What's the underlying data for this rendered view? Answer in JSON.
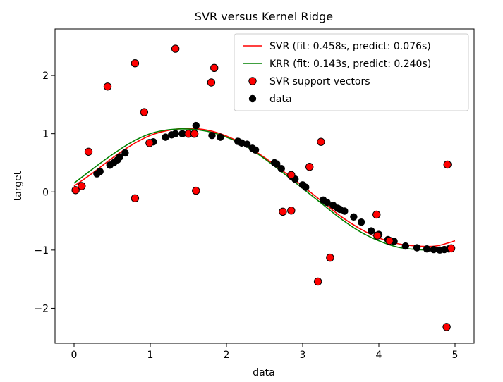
{
  "chart_data": {
    "type": "scatter",
    "title": "SVR versus Kernel Ridge",
    "xlabel": "data",
    "ylabel": "target",
    "xlim": [
      -0.25,
      5.25
    ],
    "ylim": [
      -2.6,
      2.8
    ],
    "x_ticks": [
      0,
      1,
      2,
      3,
      4,
      5
    ],
    "y_ticks": [
      -2,
      -1,
      0,
      1,
      2
    ],
    "x_tick_labels": [
      "0",
      "1",
      "2",
      "3",
      "4",
      "5"
    ],
    "y_tick_labels": [
      "−2",
      "−1",
      "0",
      "1",
      "2"
    ],
    "grid": false,
    "legend_position": "upper right",
    "series": [
      {
        "name": "SVR (fit: 0.458s, predict: 0.076s)",
        "kind": "line",
        "color": "#ff0000",
        "x": [
          0.0,
          0.25,
          0.5,
          0.75,
          1.0,
          1.25,
          1.5,
          1.75,
          2.0,
          2.25,
          2.5,
          2.75,
          3.0,
          3.25,
          3.5,
          3.75,
          4.0,
          4.25,
          4.5,
          4.75,
          5.0
        ],
        "y": [
          0.1,
          0.33,
          0.58,
          0.8,
          0.97,
          1.06,
          1.09,
          1.06,
          0.96,
          0.8,
          0.59,
          0.35,
          0.1,
          -0.16,
          -0.42,
          -0.63,
          -0.79,
          -0.89,
          -0.93,
          -0.93,
          -0.84
        ]
      },
      {
        "name": "KRR (fit: 0.143s, predict: 0.240s)",
        "kind": "line",
        "color": "#008000",
        "x": [
          0.0,
          0.25,
          0.5,
          0.75,
          1.0,
          1.25,
          1.5,
          1.75,
          2.0,
          2.25,
          2.5,
          2.75,
          3.0,
          3.25,
          3.5,
          3.75,
          4.0,
          4.25,
          4.5,
          4.75,
          5.0
        ],
        "y": [
          0.15,
          0.4,
          0.64,
          0.85,
          1.0,
          1.07,
          1.08,
          1.04,
          0.94,
          0.79,
          0.57,
          0.32,
          0.06,
          -0.2,
          -0.46,
          -0.68,
          -0.84,
          -0.95,
          -0.99,
          -1.0,
          -0.99
        ]
      },
      {
        "name": "SVR support vectors",
        "kind": "scatter",
        "color": "#ff0000",
        "edge_color": "#000000",
        "x": [
          0.02,
          0.1,
          0.19,
          0.44,
          0.8,
          0.8,
          0.92,
          0.99,
          1.33,
          1.5,
          1.58,
          1.6,
          1.8,
          1.84,
          2.74,
          2.85,
          2.85,
          3.09,
          3.2,
          3.24,
          3.36,
          3.97,
          3.98,
          4.14,
          4.89,
          4.9,
          4.95
        ],
        "y": [
          0.03,
          0.1,
          0.69,
          1.81,
          2.21,
          -0.11,
          1.37,
          0.84,
          2.46,
          1.0,
          1.0,
          0.02,
          1.88,
          2.13,
          -0.34,
          -0.32,
          0.29,
          0.43,
          -1.54,
          0.86,
          -1.13,
          -0.39,
          -0.75,
          -0.84,
          -2.32,
          0.47,
          -0.97
        ]
      },
      {
        "name": "data",
        "kind": "scatter",
        "color": "#000000",
        "x": [
          0.3,
          0.34,
          0.47,
          0.52,
          0.57,
          0.6,
          0.67,
          1.04,
          1.2,
          1.28,
          1.33,
          1.42,
          1.6,
          1.81,
          1.92,
          2.15,
          2.2,
          2.27,
          2.34,
          2.38,
          2.63,
          2.66,
          2.72,
          2.85,
          2.9,
          3.0,
          3.04,
          3.27,
          3.32,
          3.4,
          3.46,
          3.49,
          3.55,
          3.67,
          3.77,
          3.9,
          4.0,
          4.12,
          4.2,
          4.35,
          4.5,
          4.63,
          4.72,
          4.8,
          4.86,
          4.92
        ],
        "y": [
          0.31,
          0.35,
          0.46,
          0.5,
          0.55,
          0.6,
          0.67,
          0.86,
          0.94,
          0.98,
          1.0,
          1.0,
          1.14,
          0.97,
          0.94,
          0.87,
          0.84,
          0.82,
          0.75,
          0.72,
          0.5,
          0.48,
          0.4,
          0.27,
          0.22,
          0.12,
          0.08,
          -0.14,
          -0.18,
          -0.23,
          -0.28,
          -0.3,
          -0.33,
          -0.43,
          -0.52,
          -0.67,
          -0.73,
          -0.82,
          -0.85,
          -0.93,
          -0.96,
          -0.98,
          -0.99,
          -1.0,
          -0.99,
          -0.98
        ]
      }
    ]
  }
}
